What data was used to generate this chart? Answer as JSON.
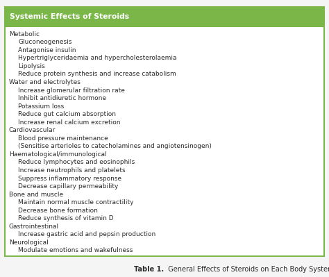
{
  "title": "Systemic Effects of Steroids",
  "caption_bold": "Table 1.",
  "caption_normal": "  General Effects of Steroids on Each Body System",
  "header_bg": "#7ab648",
  "header_text_color": "#ffffff",
  "border_color": "#7ab648",
  "table_bg": "#ffffff",
  "fig_bg": "#f5f5f5",
  "body_text_color": "#2a2a2a",
  "caption_color": "#2a2a2a",
  "rows": [
    {
      "text": "Metabolic",
      "indent": 0
    },
    {
      "text": "Gluconeogenesis",
      "indent": 1
    },
    {
      "text": "Antagonise insulin",
      "indent": 1
    },
    {
      "text": "Hypertriglyceridaemia and hypercholesterolaemia",
      "indent": 1
    },
    {
      "text": "Lipolysis",
      "indent": 1
    },
    {
      "text": "Reduce protein synthesis and increase catabolism",
      "indent": 1
    },
    {
      "text": "Water and electrolytes",
      "indent": 0
    },
    {
      "text": "Increase glomerular filtration rate",
      "indent": 1
    },
    {
      "text": "Inhibit antidiuretic hormone",
      "indent": 1
    },
    {
      "text": "Potassium loss",
      "indent": 1
    },
    {
      "text": "Reduce gut calcium absorption",
      "indent": 1
    },
    {
      "text": "Increase renal calcium excretion",
      "indent": 1
    },
    {
      "text": "Cardiovascular",
      "indent": 0
    },
    {
      "text": "Blood pressure maintenance",
      "indent": 1
    },
    {
      "text": "(Sensitise arterioles to catecholamines and angiotensinogen)",
      "indent": 1
    },
    {
      "text": "Haematological/immunological",
      "indent": 0
    },
    {
      "text": "Reduce lymphocytes and eosinophils",
      "indent": 1
    },
    {
      "text": "Increase neutrophils and platelets",
      "indent": 1
    },
    {
      "text": "Suppress inflammatory response",
      "indent": 1
    },
    {
      "text": "Decrease capillary permeability",
      "indent": 1
    },
    {
      "text": "Bone and muscle",
      "indent": 0
    },
    {
      "text": "Maintain normal muscle contractility",
      "indent": 1
    },
    {
      "text": "Decrease bone formation",
      "indent": 1
    },
    {
      "text": "Reduce synthesis of vitamin D",
      "indent": 1
    },
    {
      "text": "Gastrointestinal",
      "indent": 0
    },
    {
      "text": "Increase gastric acid and pepsin production",
      "indent": 1
    },
    {
      "text": "Neurological",
      "indent": 0
    },
    {
      "text": "Modulate emotions and wakefulness",
      "indent": 1
    }
  ],
  "figsize": [
    4.74,
    3.99
  ],
  "dpi": 100,
  "header_fontsize": 7.8,
  "body_fontsize": 6.5,
  "caption_fontsize": 7.0
}
